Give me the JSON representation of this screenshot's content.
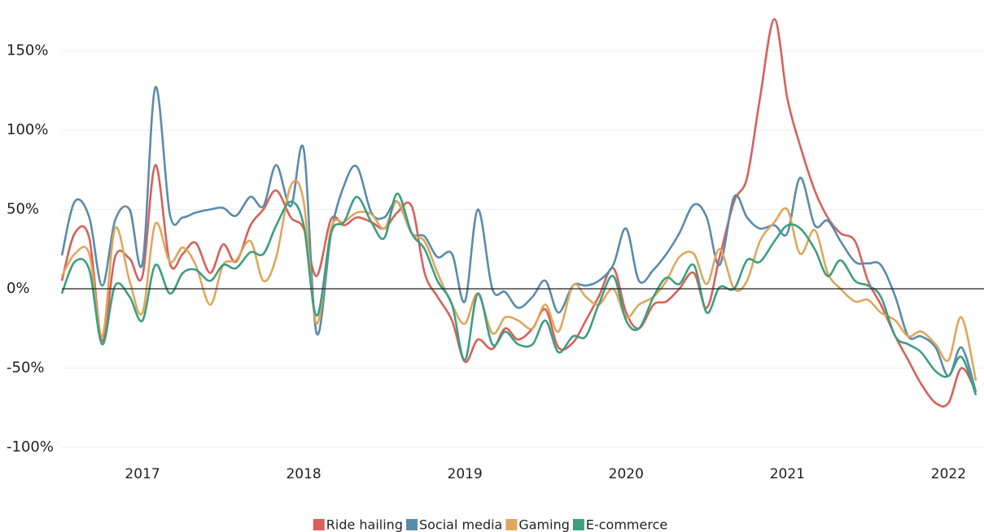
{
  "chart_data": {
    "type": "line",
    "x": [
      2016.5,
      2016.58,
      2016.67,
      2016.75,
      2016.83,
      2016.92,
      2017,
      2017.08,
      2017.17,
      2017.25,
      2017.33,
      2017.42,
      2017.5,
      2017.58,
      2017.67,
      2017.75,
      2017.83,
      2017.92,
      2018,
      2018.08,
      2018.17,
      2018.25,
      2018.33,
      2018.42,
      2018.5,
      2018.58,
      2018.67,
      2018.75,
      2018.83,
      2018.92,
      2019,
      2019.08,
      2019.17,
      2019.25,
      2019.33,
      2019.42,
      2019.5,
      2019.58,
      2019.67,
      2019.75,
      2019.83,
      2019.92,
      2020,
      2020.08,
      2020.17,
      2020.25,
      2020.33,
      2020.42,
      2020.5,
      2020.58,
      2020.67,
      2020.75,
      2020.83,
      2020.92,
      2021,
      2021.08,
      2021.17,
      2021.25,
      2021.33,
      2021.42,
      2021.5,
      2021.58,
      2021.67,
      2021.75,
      2021.83,
      2021.92,
      2022,
      2022.08,
      2022.17
    ],
    "series": [
      {
        "name": "Ride hailing",
        "color": "#d9605a",
        "values": [
          5,
          35,
          32,
          -33,
          20,
          19,
          8,
          78,
          16,
          22,
          29,
          10,
          28,
          17,
          40,
          50,
          62,
          45,
          38,
          8,
          44,
          40,
          45,
          42,
          38,
          48,
          52,
          10,
          -5,
          -20,
          -46,
          -32,
          -38,
          -25,
          -32,
          -25,
          -13,
          -37,
          -34,
          -20,
          -5,
          13,
          -15,
          -25,
          -10,
          -8,
          0,
          10,
          -12,
          20,
          55,
          70,
          120,
          170,
          120,
          90,
          62,
          45,
          35,
          30,
          5,
          -10,
          -30,
          -45,
          -60,
          -72,
          -72,
          -50,
          -65
        ]
      },
      {
        "name": "Social media",
        "color": "#5b8bab",
        "values": [
          21,
          55,
          45,
          2,
          43,
          50,
          16,
          127,
          47,
          45,
          48,
          50,
          51,
          46,
          58,
          52,
          78,
          52,
          88,
          -28,
          35,
          65,
          77,
          48,
          45,
          55,
          35,
          33,
          20,
          22,
          -8,
          50,
          0,
          -2,
          -12,
          -5,
          5,
          -15,
          2,
          2,
          5,
          15,
          38,
          5,
          12,
          22,
          35,
          53,
          45,
          15,
          58,
          45,
          38,
          40,
          35,
          70,
          40,
          43,
          30,
          17,
          16,
          15,
          -5,
          -30,
          -30,
          -37,
          -55,
          -37,
          -65
        ]
      },
      {
        "name": "Gaming",
        "color": "#dfa75c",
        "values": [
          8,
          22,
          22,
          -30,
          38,
          5,
          -15,
          41,
          17,
          26,
          15,
          -10,
          15,
          18,
          30,
          5,
          20,
          65,
          55,
          -22,
          38,
          42,
          48,
          47,
          38,
          55,
          35,
          30,
          10,
          -10,
          -22,
          -3,
          -28,
          -18,
          -20,
          -25,
          -10,
          -27,
          2,
          -5,
          -10,
          0,
          -18,
          -10,
          -5,
          5,
          20,
          22,
          3,
          25,
          0,
          5,
          30,
          42,
          50,
          22,
          37,
          10,
          0,
          -8,
          -7,
          -15,
          -20,
          -30,
          -27,
          -35,
          -45,
          -18,
          -58
        ]
      },
      {
        "name": "E-commerce",
        "color": "#3c9f80",
        "values": [
          -3,
          17,
          12,
          -35,
          2,
          -5,
          -20,
          15,
          -3,
          10,
          12,
          5,
          15,
          13,
          23,
          22,
          40,
          55,
          40,
          -17,
          35,
          42,
          58,
          42,
          32,
          60,
          35,
          25,
          5,
          -10,
          -45,
          -3,
          -35,
          -27,
          -35,
          -35,
          -20,
          -40,
          -30,
          -30,
          -10,
          8,
          -20,
          -25,
          -5,
          7,
          3,
          15,
          -15,
          1,
          0,
          18,
          17,
          30,
          40,
          38,
          25,
          8,
          18,
          5,
          2,
          -5,
          -30,
          -35,
          -40,
          -52,
          -55,
          -43,
          -67
        ]
      }
    ],
    "xlim": [
      2016.5,
      2022.22
    ],
    "xticks": [
      2017,
      2018,
      2019,
      2020,
      2021,
      2022
    ],
    "ylim": [
      -100,
      175
    ],
    "yticks": [
      {
        "value": -100,
        "label": "-100%"
      },
      {
        "value": -50,
        "label": "-50%"
      },
      {
        "value": 0,
        "label": "0%"
      },
      {
        "value": 50,
        "label": "50%"
      },
      {
        "value": 100,
        "label": "100%"
      },
      {
        "value": 150,
        "label": "150%"
      }
    ],
    "grid": true,
    "legend": "bottom"
  }
}
